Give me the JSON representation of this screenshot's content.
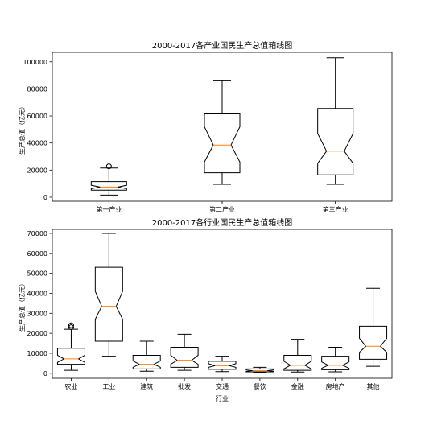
{
  "chart_data": [
    {
      "type": "box",
      "title": "2000-2017各产业国民生产总值箱线图",
      "ylabel": "生产总值（亿元）",
      "xlabel": "",
      "ylim": [
        -3000,
        107000
      ],
      "yticks": [
        0,
        20000,
        40000,
        60000,
        80000,
        100000
      ],
      "notched": true,
      "box_color": "#000000",
      "median_color": "#ff7f0e",
      "categories": [
        "第一产业",
        "第二产业",
        "第三产业"
      ],
      "boxes": [
        {
          "whisker_low": 1500,
          "q1": 5200,
          "median": 7500,
          "q3": 11500,
          "whisker_high": 21500,
          "notch_low": 6300,
          "notch_high": 8800,
          "outliers": [
            22800
          ]
        },
        {
          "whisker_low": 9500,
          "q1": 18000,
          "median": 38500,
          "q3": 61500,
          "whisker_high": 86000,
          "notch_low": 26000,
          "notch_high": 52000,
          "outliers": []
        },
        {
          "whisker_low": 9500,
          "q1": 16500,
          "median": 34000,
          "q3": 65500,
          "whisker_high": 103000,
          "notch_low": 25000,
          "notch_high": 47000,
          "outliers": []
        }
      ]
    },
    {
      "type": "box",
      "title": "2000-2017各行业国民生产总值箱线图",
      "ylabel": "生产总值（亿元）",
      "xlabel": "行业",
      "ylim": [
        -2500,
        72000
      ],
      "yticks": [
        0,
        10000,
        20000,
        30000,
        40000,
        50000,
        60000,
        70000
      ],
      "notched": true,
      "box_color": "#000000",
      "median_color": "#ff7f0e",
      "categories": [
        "农业",
        "工业",
        "建筑",
        "批发",
        "交通",
        "餐饮",
        "金融",
        "房地产",
        "其他"
      ],
      "boxes": [
        {
          "whisker_low": 1500,
          "q1": 4500,
          "median": 7200,
          "q3": 12500,
          "whisker_high": 22000,
          "notch_low": 5500,
          "notch_high": 9000,
          "outliers": [
            23000,
            24000
          ]
        },
        {
          "whisker_low": 8500,
          "q1": 16000,
          "median": 33500,
          "q3": 53000,
          "whisker_high": 70000,
          "notch_low": 27000,
          "notch_high": 41000,
          "outliers": []
        },
        {
          "whisker_low": 1000,
          "q1": 2200,
          "median": 4500,
          "q3": 9000,
          "whisker_high": 16000,
          "notch_low": 3000,
          "notch_high": 6200,
          "outliers": []
        },
        {
          "whisker_low": 1500,
          "q1": 3000,
          "median": 6500,
          "q3": 13000,
          "whisker_high": 19500,
          "notch_low": 4500,
          "notch_high": 9000,
          "outliers": []
        },
        {
          "whisker_low": 800,
          "q1": 2000,
          "median": 3800,
          "q3": 6000,
          "whisker_high": 8500,
          "notch_low": 3000,
          "notch_high": 4800,
          "outliers": []
        },
        {
          "whisker_low": 300,
          "q1": 700,
          "median": 1300,
          "q3": 2200,
          "whisker_high": 3000,
          "notch_low": 1000,
          "notch_high": 1700,
          "outliers": []
        },
        {
          "whisker_low": 600,
          "q1": 1500,
          "median": 4000,
          "q3": 9000,
          "whisker_high": 17000,
          "notch_low": 2200,
          "notch_high": 6000,
          "outliers": []
        },
        {
          "whisker_low": 700,
          "q1": 1800,
          "median": 4000,
          "q3": 8500,
          "whisker_high": 13000,
          "notch_low": 2500,
          "notch_high": 5700,
          "outliers": []
        },
        {
          "whisker_low": 3500,
          "q1": 7000,
          "median": 13500,
          "q3": 23500,
          "whisker_high": 42500,
          "notch_low": 10500,
          "notch_high": 17500,
          "outliers": []
        }
      ]
    }
  ]
}
